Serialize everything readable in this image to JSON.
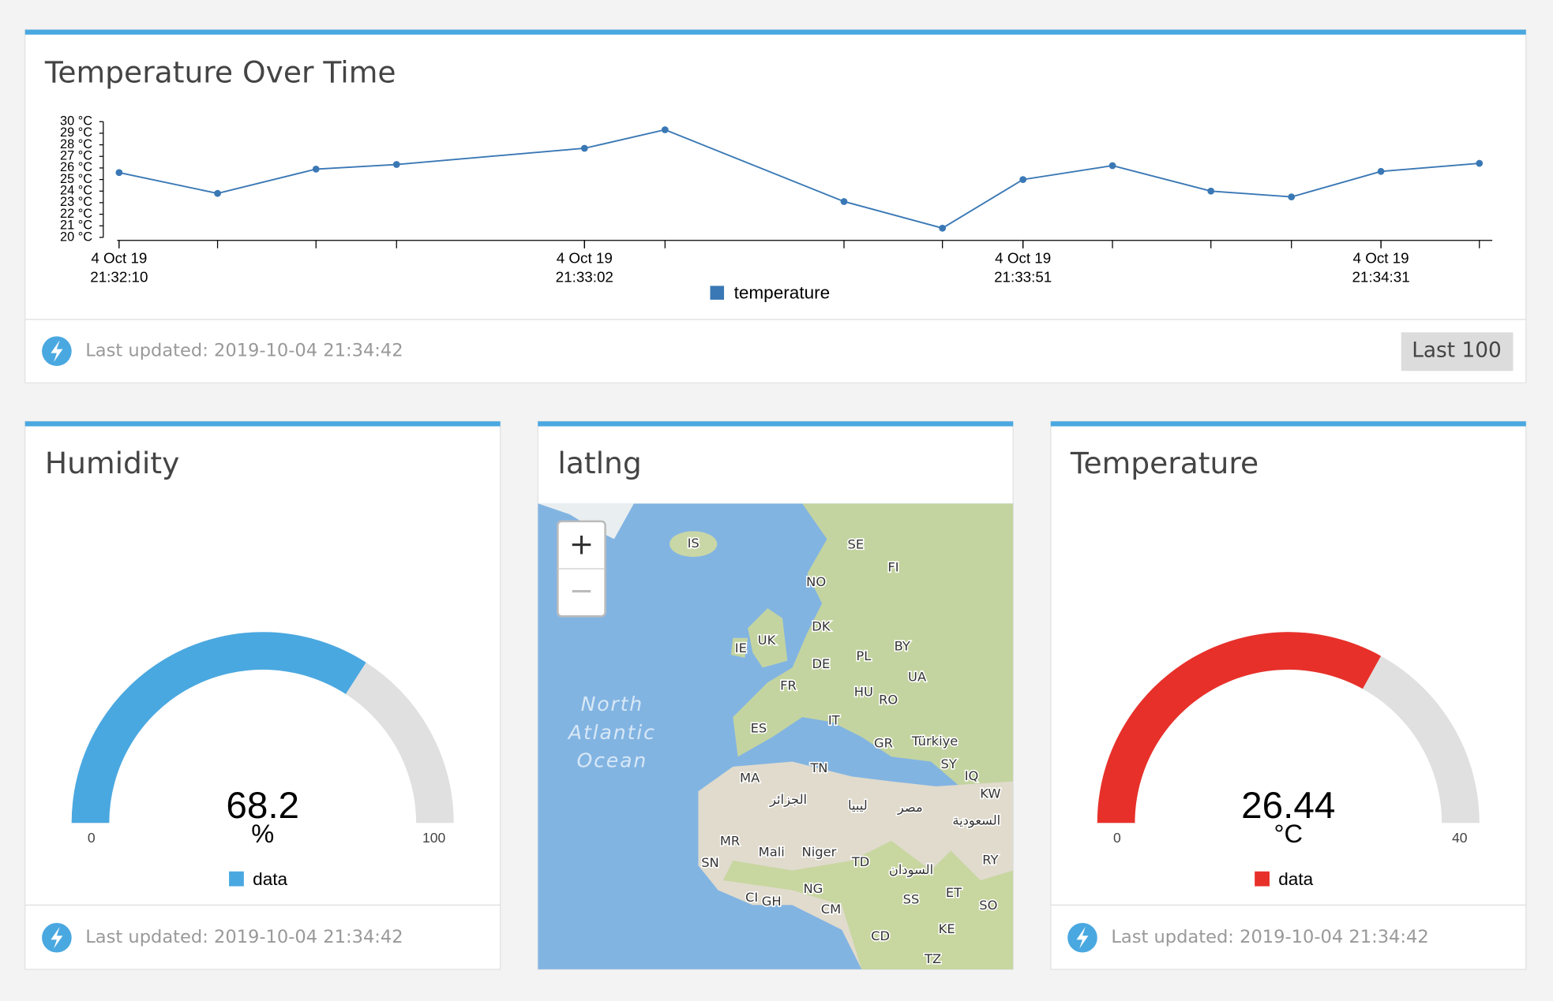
{
  "chart_data": [
    {
      "type": "line",
      "title": "Temperature Over Time",
      "x": [
        "2019-10-04T21:32:10",
        "2019-10-04T21:32:21",
        "2019-10-04T21:32:32",
        "2019-10-04T21:32:41",
        "2019-10-04T21:33:02",
        "2019-10-04T21:33:11",
        "2019-10-04T21:33:31",
        "2019-10-04T21:33:42",
        "2019-10-04T21:33:51",
        "2019-10-04T21:34:01",
        "2019-10-04T21:34:12",
        "2019-10-04T21:34:21",
        "2019-10-04T21:34:31",
        "2019-10-04T21:34:42"
      ],
      "series": [
        {
          "name": "temperature",
          "color": "#3a78b5",
          "values": [
            25.6,
            23.8,
            25.9,
            26.3,
            27.7,
            29.3,
            23.1,
            20.8,
            25.0,
            26.2,
            24.0,
            23.5,
            25.7,
            26.4
          ]
        }
      ],
      "xlim": [
        "2019-10-04T21:32:10",
        "2019-10-04T21:34:43"
      ],
      "xticks": [
        {
          "value": "2019-10-04T21:32:10",
          "label": [
            "4 Oct 19",
            "21:32:10"
          ]
        },
        {
          "value": "2019-10-04T21:33:02",
          "label": [
            "4 Oct 19",
            "21:33:02"
          ]
        },
        {
          "value": "2019-10-04T21:33:51",
          "label": [
            "4 Oct 19",
            "21:33:51"
          ]
        },
        {
          "value": "2019-10-04T21:34:31",
          "label": [
            "4 Oct 19",
            "21:34:31"
          ]
        }
      ],
      "ylim": [
        20,
        30
      ],
      "yticks": [
        {
          "value": 20,
          "label": "20 °C"
        },
        {
          "value": 21,
          "label": "21 °C"
        },
        {
          "value": 22,
          "label": "22 °C"
        },
        {
          "value": 23,
          "label": "23 °C"
        },
        {
          "value": 24,
          "label": "24 °C"
        },
        {
          "value": 25,
          "label": "25 °C"
        },
        {
          "value": 26,
          "label": "26 °C"
        },
        {
          "value": 27,
          "label": "27 °C"
        },
        {
          "value": 28,
          "label": "28 °C"
        },
        {
          "value": 29,
          "label": "29 °C"
        },
        {
          "value": 30,
          "label": "30 °C"
        }
      ],
      "footer": "Last updated: 2019-10-04 21:34:42",
      "button": "Last 100"
    },
    {
      "type": "gauge",
      "title": "Humidity",
      "unit": "%",
      "ylim": [
        0,
        100
      ],
      "series": [
        {
          "name": "data",
          "color": "#4aa8e0",
          "values": [
            68.2
          ]
        }
      ],
      "footer": "Last updated: 2019-10-04 21:34:42"
    },
    {
      "type": "gauge",
      "title": "Temperature",
      "unit": "°C",
      "ylim": [
        0,
        40
      ],
      "series": [
        {
          "name": "data",
          "color": "#e8302a",
          "values": [
            26.44
          ]
        }
      ],
      "footer": "Last updated: 2019-10-04 21:34:42"
    }
  ],
  "map": {
    "title": "latlng",
    "zoom": [
      "+",
      "−"
    ],
    "ocean": [
      "North",
      "Atlantic",
      "Ocean"
    ],
    "labels": [
      "IS",
      "SE",
      "FI",
      "NO",
      "DK",
      "UK",
      "IE",
      "BY",
      "PL",
      "DE",
      "UA",
      "FR",
      "HU",
      "RO",
      "IT",
      "ES",
      "GR",
      "Türkiye",
      "SY",
      "IQ",
      "KW",
      "TN",
      "MA",
      "الجزائر",
      "ليبيا",
      "مصر",
      "السعودية",
      "MR",
      "Mali",
      "Niger",
      "TD",
      "السودان",
      "RY",
      "SN",
      "CI",
      "GH",
      "NG",
      "ET",
      "SO",
      "SS",
      "CM",
      "KE",
      "CD",
      "TZ"
    ]
  }
}
